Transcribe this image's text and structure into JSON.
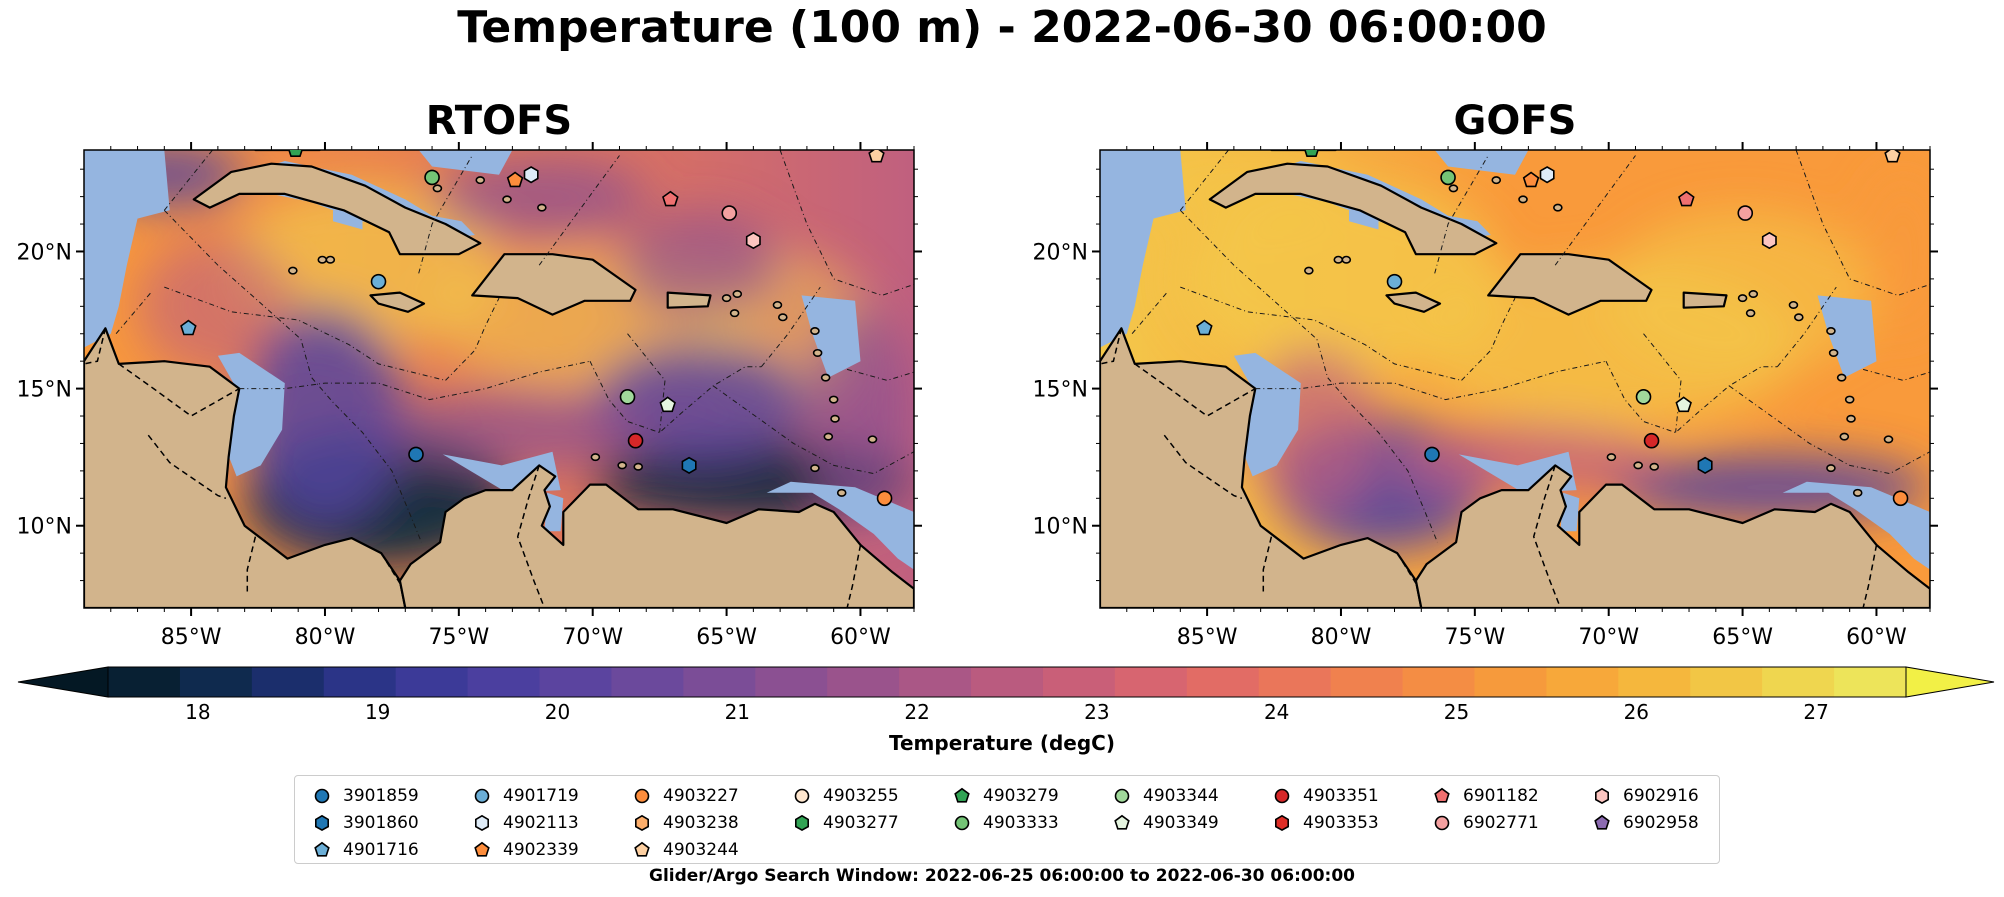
{
  "title": "Temperature (100 m) - 2022-06-30 06:00:00",
  "panels": [
    {
      "title": "RTOFS",
      "palette": [
        "#0b2a3f",
        "#2e3388",
        "#55439f",
        "#8a4f93",
        "#c0607f",
        "#e57a55",
        "#f99a3b",
        "#f4c84a"
      ],
      "hot_level": 0.55
    },
    {
      "title": "GOFS",
      "palette": [
        "#0b2a3f",
        "#2e3388",
        "#55439f",
        "#8a4f93",
        "#c0607f",
        "#e57a55",
        "#f99a3b",
        "#f4c84a"
      ],
      "hot_level": 0.85
    }
  ],
  "axes": {
    "lon_ticks": [
      "85°W",
      "80°W",
      "75°W",
      "70°W",
      "65°W",
      "60°W"
    ],
    "lat_ticks": [
      "20°N",
      "15°N",
      "10°N"
    ],
    "lon_range": [
      -89,
      -58
    ],
    "lat_range": [
      7,
      23.7
    ]
  },
  "colorbar": {
    "label": "Temperature (degC)",
    "ticks": [
      "18",
      "19",
      "20",
      "21",
      "22",
      "23",
      "24",
      "25",
      "26",
      "27"
    ],
    "tick_values": [
      18,
      19,
      20,
      21,
      22,
      23,
      24,
      25,
      26,
      27
    ],
    "min": 17.5,
    "max": 27.5,
    "colors": [
      "#082033",
      "#0f2a4e",
      "#1b2e6c",
      "#2b3487",
      "#3c3a98",
      "#4b3f9f",
      "#5b449f",
      "#6b499c",
      "#7b4d97",
      "#8b5092",
      "#9a538c",
      "#aa5786",
      "#ba5b7f",
      "#c95f78",
      "#d76570",
      "#e26c65",
      "#ea765a",
      "#f0814e",
      "#f48d44",
      "#f69a3c",
      "#f7a83a",
      "#f5b73d",
      "#f2c645",
      "#efd64f",
      "#ede45a"
    ]
  },
  "colors": {
    "land": "#d2b48c",
    "shelf": "#95b5e0",
    "pacific": "#062030"
  },
  "legend": {
    "columns": [
      [
        {
          "id": "3901859",
          "marker": "circle",
          "color": "#1f77b4"
        },
        {
          "id": "3901860",
          "marker": "hexagon",
          "color": "#1f77b4"
        },
        {
          "id": "4901716",
          "marker": "pentagon",
          "color": "#6baed6"
        }
      ],
      [
        {
          "id": "4901719",
          "marker": "circle",
          "color": "#6baed6"
        },
        {
          "id": "4902113",
          "marker": "hexagon",
          "color": "#deebf7"
        },
        {
          "id": "4902339",
          "marker": "pentagon",
          "color": "#fd8d3c"
        }
      ],
      [
        {
          "id": "4903227",
          "marker": "circle",
          "color": "#fd8d3c"
        },
        {
          "id": "4903238",
          "marker": "hexagon",
          "color": "#fdae6b"
        },
        {
          "id": "4903244",
          "marker": "pentagon",
          "color": "#fdd0a2"
        }
      ],
      [
        {
          "id": "4903255",
          "marker": "circle",
          "color": "#fee6ce"
        },
        {
          "id": "4903277",
          "marker": "hexagon",
          "color": "#31a354"
        }
      ],
      [
        {
          "id": "4903279",
          "marker": "pentagon",
          "color": "#31a354"
        },
        {
          "id": "4903333",
          "marker": "circle",
          "color": "#74c476"
        }
      ],
      [
        {
          "id": "4903344",
          "marker": "circle",
          "color": "#a1d99b"
        },
        {
          "id": "4903349",
          "marker": "pentagon",
          "color": "#e5f5e0"
        }
      ],
      [
        {
          "id": "4903351",
          "marker": "circle",
          "color": "#d62728"
        },
        {
          "id": "4903353",
          "marker": "hexagon",
          "color": "#de2d26"
        }
      ],
      [
        {
          "id": "6901182",
          "marker": "pentagon",
          "color": "#f07070"
        },
        {
          "id": "6902771",
          "marker": "circle",
          "color": "#f4a0a0"
        }
      ],
      [
        {
          "id": "6902916",
          "marker": "hexagon",
          "color": "#fcc5c0"
        },
        {
          "id": "6902958",
          "marker": "pentagon",
          "color": "#8c6bb1"
        }
      ]
    ]
  },
  "floats": [
    {
      "id": "4903279",
      "lon": -81.1,
      "lat": 23.7,
      "marker": "pentagon",
      "color": "#31a354"
    },
    {
      "id": "4903333",
      "lon": -76.0,
      "lat": 22.7,
      "marker": "circle",
      "color": "#74c476"
    },
    {
      "id": "4902339",
      "lon": -72.9,
      "lat": 22.6,
      "marker": "pentagon",
      "color": "#fd8d3c"
    },
    {
      "id": "4902113",
      "lon": -72.3,
      "lat": 22.8,
      "marker": "hexagon",
      "color": "#deebf7"
    },
    {
      "id": "6901182",
      "lon": -67.1,
      "lat": 21.9,
      "marker": "pentagon",
      "color": "#f07070"
    },
    {
      "id": "6902771",
      "lon": -64.9,
      "lat": 21.4,
      "marker": "circle",
      "color": "#f4a0a0"
    },
    {
      "id": "6902916",
      "lon": -64.0,
      "lat": 20.4,
      "marker": "hexagon",
      "color": "#fcc5c0"
    },
    {
      "id": "4903244",
      "lon": -59.4,
      "lat": 23.5,
      "marker": "pentagon",
      "color": "#fdd0a2"
    },
    {
      "id": "4901719",
      "lon": -78.0,
      "lat": 18.9,
      "marker": "circle",
      "color": "#6baed6"
    },
    {
      "id": "4901716",
      "lon": -85.1,
      "lat": 17.2,
      "marker": "pentagon",
      "color": "#6baed6"
    },
    {
      "id": "4903344",
      "lon": -68.7,
      "lat": 14.7,
      "marker": "circle",
      "color": "#a1d99b"
    },
    {
      "id": "4903349",
      "lon": -67.2,
      "lat": 14.4,
      "marker": "pentagon",
      "color": "#e5f5e0"
    },
    {
      "id": "4903351",
      "lon": -68.4,
      "lat": 13.1,
      "marker": "circle",
      "color": "#d62728"
    },
    {
      "id": "3901859",
      "lon": -76.6,
      "lat": 12.6,
      "marker": "circle",
      "color": "#1f77b4"
    },
    {
      "id": "3901860",
      "lon": -66.4,
      "lat": 12.2,
      "marker": "hexagon",
      "color": "#1f77b4"
    },
    {
      "id": "4903227",
      "lon": -59.1,
      "lat": 11.0,
      "marker": "circle",
      "color": "#fd8d3c"
    }
  ],
  "footer": "Glider/Argo Search Window: 2022-06-25 06:00:00 to 2022-06-30 06:00:00"
}
